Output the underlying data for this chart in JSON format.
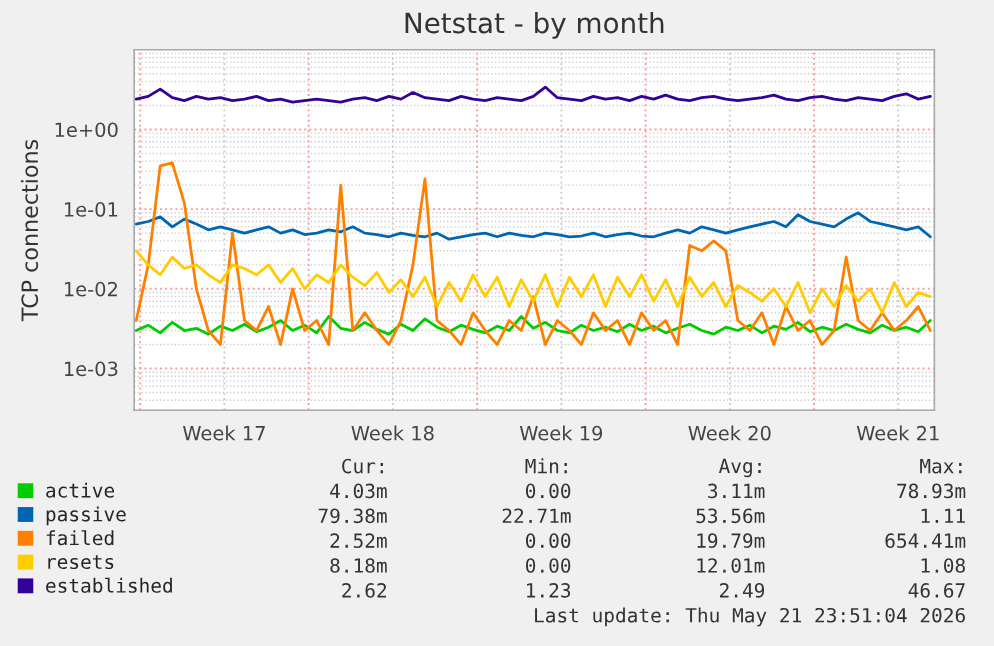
{
  "chart_data": {
    "type": "line",
    "title": "Netstat - by month",
    "ylabel": "TCP connections",
    "x": [
      "2026-04-19T20:00",
      "2026-04-20T08:00",
      "2026-04-20T20:00",
      "2026-04-21T08:00",
      "2026-04-21T20:00",
      "2026-04-22T08:00",
      "2026-04-22T20:00",
      "2026-04-23T08:00",
      "2026-04-23T20:00",
      "2026-04-24T08:00",
      "2026-04-24T20:00",
      "2026-04-25T08:00",
      "2026-04-25T20:00",
      "2026-04-26T08:00",
      "2026-04-26T20:00",
      "2026-04-27T08:00",
      "2026-04-27T20:00",
      "2026-04-28T08:00",
      "2026-04-28T20:00",
      "2026-04-29T08:00",
      "2026-04-29T20:00",
      "2026-04-30T08:00",
      "2026-04-30T20:00",
      "2026-05-01T08:00",
      "2026-05-01T20:00",
      "2026-05-02T08:00",
      "2026-05-02T20:00",
      "2026-05-03T08:00",
      "2026-05-03T20:00",
      "2026-05-04T08:00",
      "2026-05-04T20:00",
      "2026-05-05T08:00",
      "2026-05-05T20:00",
      "2026-05-06T08:00",
      "2026-05-06T20:00",
      "2026-05-07T08:00",
      "2026-05-07T20:00",
      "2026-05-08T08:00",
      "2026-05-08T20:00",
      "2026-05-09T08:00",
      "2026-05-09T20:00",
      "2026-05-10T08:00",
      "2026-05-10T20:00",
      "2026-05-11T08:00",
      "2026-05-11T20:00",
      "2026-05-12T08:00",
      "2026-05-12T20:00",
      "2026-05-13T08:00",
      "2026-05-13T20:00",
      "2026-05-14T08:00",
      "2026-05-14T20:00",
      "2026-05-15T08:00",
      "2026-05-15T20:00",
      "2026-05-16T08:00",
      "2026-05-16T20:00",
      "2026-05-17T08:00",
      "2026-05-17T20:00",
      "2026-05-18T08:00",
      "2026-05-18T20:00",
      "2026-05-19T08:00",
      "2026-05-19T20:00",
      "2026-05-20T08:00",
      "2026-05-20T20:00",
      "2026-05-21T08:00",
      "2026-05-21T20:00",
      "2026-05-22T08:00",
      "2026-05-22T20:00"
    ],
    "series": [
      {
        "name": "active",
        "color": "#00cc00",
        "values": [
          0.003,
          0.0035,
          0.0028,
          0.0038,
          0.003,
          0.0032,
          0.0027,
          0.0034,
          0.003,
          0.0036,
          0.0029,
          0.0033,
          0.004,
          0.003,
          0.0035,
          0.0028,
          0.0045,
          0.0032,
          0.003,
          0.0038,
          0.0031,
          0.0027,
          0.0036,
          0.003,
          0.0042,
          0.0033,
          0.0029,
          0.0035,
          0.0031,
          0.0028,
          0.0034,
          0.003,
          0.0045,
          0.0032,
          0.0038,
          0.003,
          0.0028,
          0.0035,
          0.003,
          0.0033,
          0.0029,
          0.0036,
          0.003,
          0.0034,
          0.0028,
          0.0032,
          0.0036,
          0.003,
          0.0027,
          0.0033,
          0.003,
          0.0035,
          0.0028,
          0.0034,
          0.0031,
          0.0038,
          0.0029,
          0.0033,
          0.003,
          0.0036,
          0.0031,
          0.0028,
          0.0035,
          0.003,
          0.0033,
          0.0029,
          0.004
        ]
      },
      {
        "name": "passive",
        "color": "#0066b3",
        "values": [
          0.065,
          0.07,
          0.08,
          0.06,
          0.075,
          0.065,
          0.055,
          0.06,
          0.055,
          0.05,
          0.055,
          0.06,
          0.05,
          0.055,
          0.048,
          0.05,
          0.055,
          0.052,
          0.06,
          0.05,
          0.048,
          0.045,
          0.05,
          0.047,
          0.045,
          0.05,
          0.042,
          0.045,
          0.048,
          0.05,
          0.045,
          0.05,
          0.047,
          0.045,
          0.05,
          0.048,
          0.045,
          0.046,
          0.05,
          0.045,
          0.048,
          0.05,
          0.046,
          0.045,
          0.05,
          0.055,
          0.05,
          0.06,
          0.055,
          0.05,
          0.055,
          0.06,
          0.065,
          0.07,
          0.06,
          0.085,
          0.07,
          0.065,
          0.06,
          0.075,
          0.09,
          0.07,
          0.065,
          0.06,
          0.055,
          0.06,
          0.045
        ]
      },
      {
        "name": "failed",
        "color": "#ff8000",
        "values": [
          0.004,
          0.02,
          0.35,
          0.38,
          0.12,
          0.01,
          0.003,
          0.002,
          0.05,
          0.004,
          0.003,
          0.006,
          0.002,
          0.01,
          0.003,
          0.004,
          0.002,
          0.2,
          0.003,
          0.005,
          0.003,
          0.002,
          0.004,
          0.02,
          0.24,
          0.004,
          0.003,
          0.002,
          0.005,
          0.003,
          0.002,
          0.004,
          0.003,
          0.008,
          0.002,
          0.004,
          0.003,
          0.002,
          0.005,
          0.003,
          0.004,
          0.002,
          0.005,
          0.003,
          0.004,
          0.002,
          0.035,
          0.03,
          0.04,
          0.03,
          0.004,
          0.003,
          0.005,
          0.002,
          0.006,
          0.003,
          0.004,
          0.002,
          0.003,
          0.025,
          0.004,
          0.003,
          0.005,
          0.003,
          0.004,
          0.006,
          0.003
        ]
      },
      {
        "name": "resets",
        "color": "#ffcc00",
        "values": [
          0.03,
          0.02,
          0.015,
          0.025,
          0.018,
          0.02,
          0.015,
          0.012,
          0.02,
          0.018,
          0.015,
          0.02,
          0.012,
          0.018,
          0.01,
          0.015,
          0.012,
          0.02,
          0.014,
          0.011,
          0.016,
          0.009,
          0.013,
          0.008,
          0.014,
          0.006,
          0.012,
          0.007,
          0.015,
          0.008,
          0.014,
          0.006,
          0.013,
          0.007,
          0.015,
          0.006,
          0.014,
          0.008,
          0.015,
          0.006,
          0.014,
          0.008,
          0.015,
          0.007,
          0.013,
          0.006,
          0.014,
          0.008,
          0.012,
          0.006,
          0.011,
          0.009,
          0.007,
          0.01,
          0.006,
          0.012,
          0.005,
          0.01,
          0.006,
          0.011,
          0.007,
          0.01,
          0.005,
          0.012,
          0.006,
          0.009,
          0.008
        ]
      },
      {
        "name": "established",
        "color": "#330099",
        "values": [
          2.4,
          2.6,
          3.2,
          2.5,
          2.3,
          2.6,
          2.4,
          2.5,
          2.3,
          2.4,
          2.6,
          2.3,
          2.4,
          2.2,
          2.3,
          2.4,
          2.3,
          2.2,
          2.4,
          2.5,
          2.3,
          2.6,
          2.4,
          2.9,
          2.5,
          2.4,
          2.3,
          2.6,
          2.4,
          2.3,
          2.5,
          2.4,
          2.3,
          2.6,
          3.4,
          2.5,
          2.4,
          2.3,
          2.6,
          2.4,
          2.5,
          2.3,
          2.6,
          2.4,
          2.7,
          2.4,
          2.3,
          2.5,
          2.6,
          2.4,
          2.3,
          2.4,
          2.5,
          2.7,
          2.4,
          2.3,
          2.5,
          2.6,
          2.4,
          2.3,
          2.5,
          2.4,
          2.3,
          2.6,
          2.8,
          2.4,
          2.6
        ]
      }
    ],
    "log": "y",
    "ylim": [
      0.0003,
      10
    ],
    "yticks": [
      {
        "value": 0.001,
        "label": "1e-03"
      },
      {
        "value": 0.01,
        "label": "1e-02"
      },
      {
        "value": 0.1,
        "label": "1e-01"
      },
      {
        "value": 1,
        "label": "1e+00"
      }
    ],
    "xlim": [
      "2026-04-19T18:00",
      "2026-05-23T00:00"
    ],
    "xticks": [
      {
        "value": "2026-04-20",
        "label": null
      },
      {
        "value": "2026-04-23T12:00",
        "label": "Week 17"
      },
      {
        "value": "2026-04-27",
        "label": null
      },
      {
        "value": "2026-04-30T12:00",
        "label": "Week 18"
      },
      {
        "value": "2026-05-04",
        "label": null
      },
      {
        "value": "2026-05-07T12:00",
        "label": "Week 19"
      },
      {
        "value": "2026-05-11",
        "label": null
      },
      {
        "value": "2026-05-14T12:00",
        "label": "Week 20"
      },
      {
        "value": "2026-05-18",
        "label": null
      },
      {
        "value": "2026-05-21T12:00",
        "label": "Week 21"
      }
    ],
    "grid": true,
    "legend": "bottom",
    "marker": "none",
    "line_style": "solid",
    "annotations": [
      "Cur:",
      "Min:",
      "Avg:",
      "Max:",
      "4.03m",
      "0.00",
      "3.11m",
      "78.93m",
      "79.38m",
      "22.71m",
      "53.56m",
      "1.11",
      "2.52m",
      "0.00",
      "19.79m",
      "654.41m",
      "8.18m",
      "0.00",
      "12.01m",
      "1.08",
      "2.62",
      "1.23",
      "2.49",
      "46.67",
      "Last update: Thu May 21 23:51:04 2026"
    ]
  }
}
